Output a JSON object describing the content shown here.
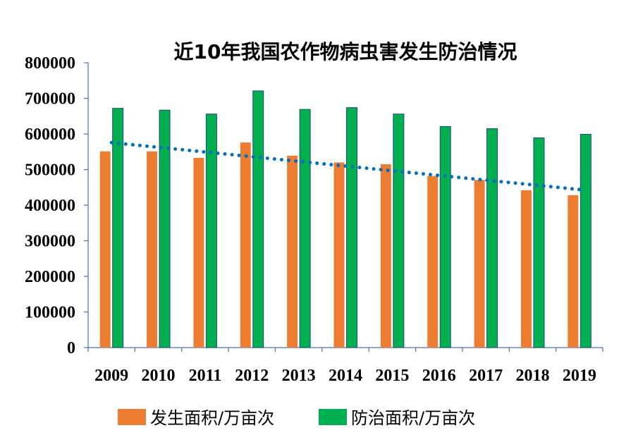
{
  "chart_data": {
    "type": "bar",
    "title": "近10年我国农作物病虫害发生防治情况",
    "xlabel": "",
    "ylabel": "",
    "categories": [
      "2009",
      "2010",
      "2011",
      "2012",
      "2013",
      "2014",
      "2015",
      "2016",
      "2017",
      "2018",
      "2019"
    ],
    "series": [
      {
        "name": "发生面积/万亩次",
        "color": "#ED7D31",
        "values": [
          551000,
          551000,
          533000,
          576000,
          539000,
          520000,
          515000,
          482000,
          471000,
          442000,
          428000
        ]
      },
      {
        "name": "防治面积/万亩次",
        "color": "#00B050",
        "values": [
          672000,
          667000,
          656000,
          721000,
          669000,
          674000,
          656000,
          621000,
          615000,
          589000,
          599000
        ]
      }
    ],
    "trendline": {
      "series": "发生面积/万亩次",
      "style": "dotted",
      "color": "#0070C0"
    },
    "ylim": [
      0,
      800000
    ],
    "yticks": [
      "0",
      "100000",
      "200000",
      "300000",
      "400000",
      "500000",
      "600000",
      "700000",
      "800000"
    ],
    "grid": false,
    "legend": "bottom"
  }
}
